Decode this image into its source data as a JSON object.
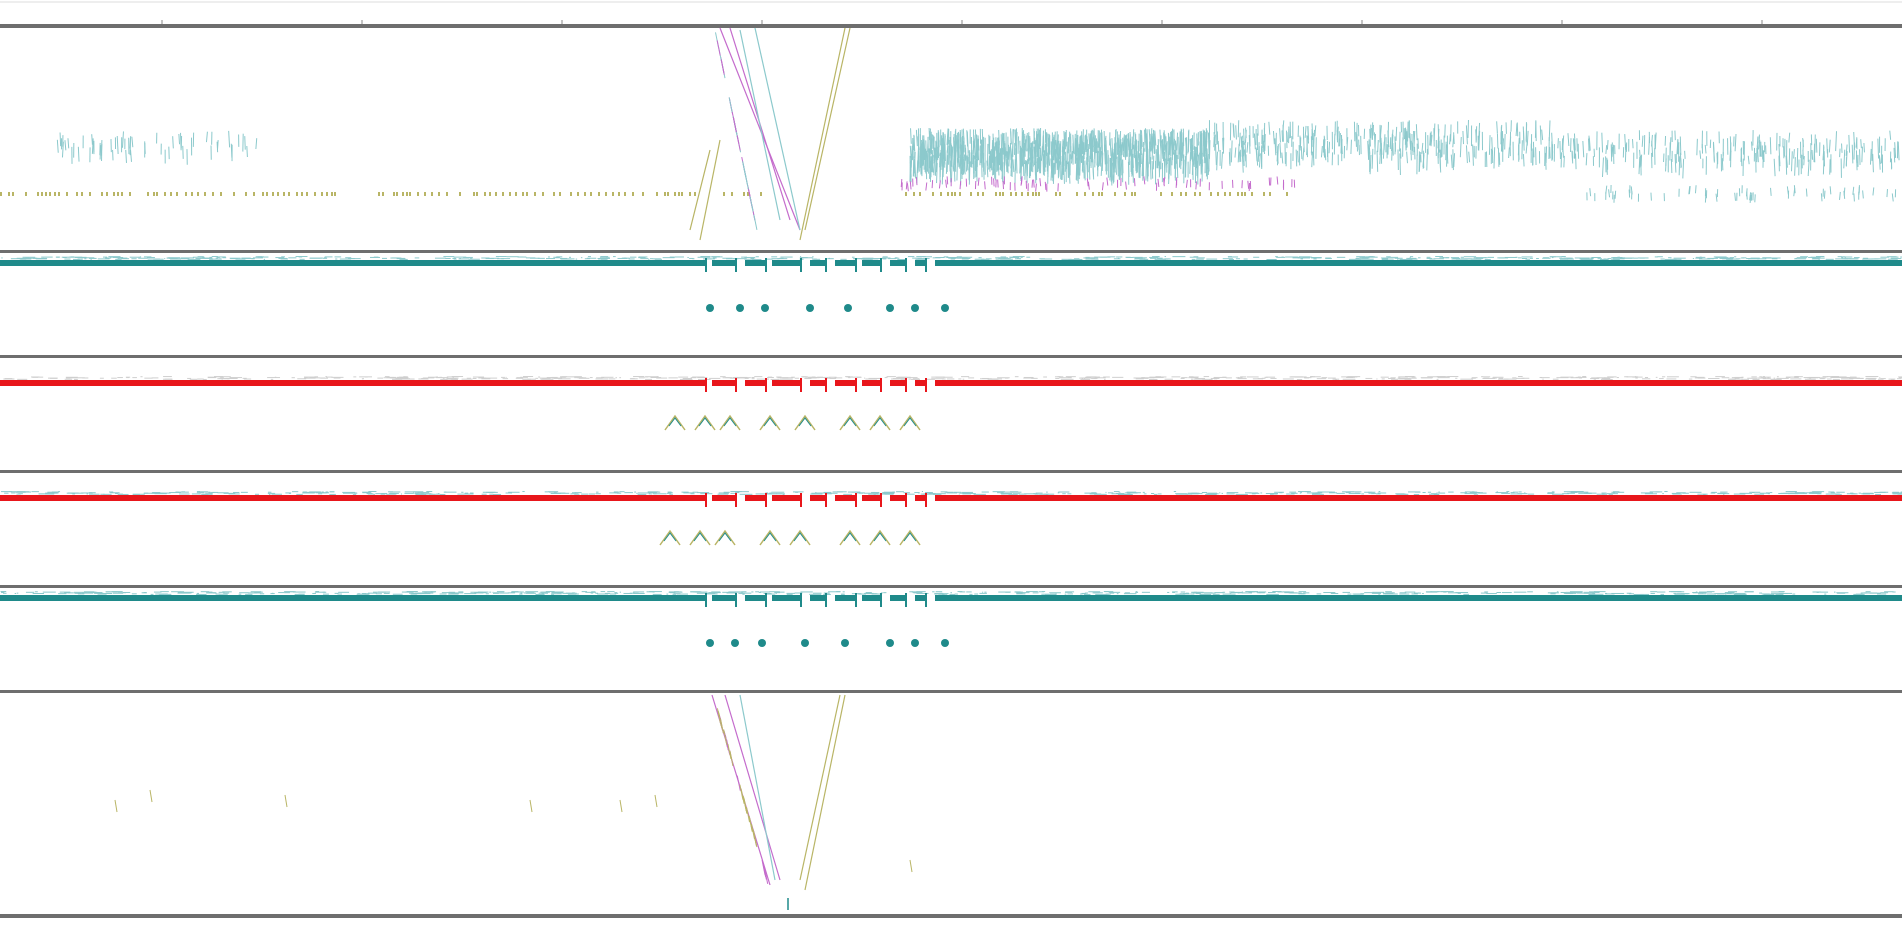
{
  "viewer": {
    "background": "#ffffff",
    "border_color": "#6e6e6e",
    "ruler_tick_color": "#888888"
  },
  "colors": {
    "teal": "#1f8a8a",
    "teal_light": "#8cc9cc",
    "red": "#e8161b",
    "olive": "#b9b566",
    "magenta": "#c46bcc",
    "grey_light": "#cfcfcf"
  },
  "ruler": {
    "tick_count": 10,
    "tick_labels": []
  },
  "tracks": [
    {
      "kind": "scatter",
      "name": "track-top-scatter"
    },
    {
      "kind": "coverage",
      "name": "track-coverage-teal-1",
      "color_key": "teal"
    },
    {
      "kind": "coverage",
      "name": "track-coverage-red-1",
      "color_key": "red"
    },
    {
      "kind": "coverage",
      "name": "track-coverage-red-2",
      "color_key": "red"
    },
    {
      "kind": "coverage",
      "name": "track-coverage-teal-2",
      "color_key": "teal"
    },
    {
      "kind": "scatter",
      "name": "track-bottom-scatter"
    }
  ]
}
